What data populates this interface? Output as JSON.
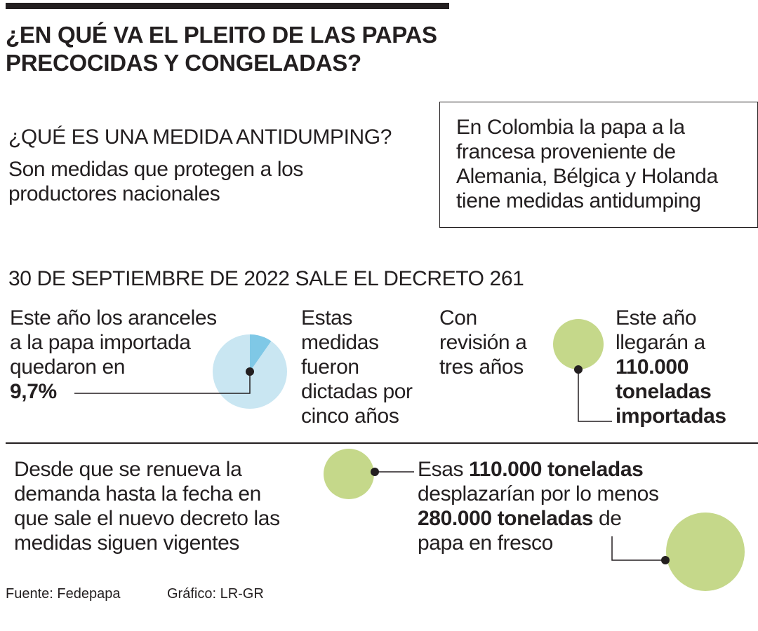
{
  "title_line1": "¿EN QUÉ VA EL PLEITO DE LAS PAPAS",
  "title_line2": "PRECOCIDAS Y CONGELADAS?",
  "antidumping": {
    "heading": "¿QUÉ ES UNA MEDIDA ANTIDUMPING?",
    "line1": "Son medidas que protegen a los",
    "line2": "productores nacionales"
  },
  "colombia_note": {
    "line1": "En Colombia la papa a la",
    "line2": "francesa proveniente de",
    "line3": "Alemania, Bélgica y Holanda",
    "line4": "tiene medidas antidumping"
  },
  "decree_heading": "30 DE SEPTIEMBRE DE 2022 SALE EL DECRETO 261",
  "tariffs": {
    "line1": "Este año los aranceles",
    "line2": "a la papa importada",
    "line3": "quedaron en",
    "value": "9,7%",
    "percent": 9.7
  },
  "duration": {
    "line1": "Estas",
    "line2": "medidas",
    "line3": "fueron",
    "line4": "dictadas por",
    "line5": "cinco años"
  },
  "review": {
    "line1": "Con",
    "line2": "revisión a",
    "line3": "tres años"
  },
  "imports": {
    "line1": "Este año",
    "line2": "llegarán a",
    "line3": "110.000",
    "line4": "toneladas",
    "line5": "importadas"
  },
  "renewal": {
    "line1": "Desde que se renueva la",
    "line2": "demanda hasta la fecha en",
    "line3": "que sale el nuevo decreto las",
    "line4": "medidas siguen vigentes"
  },
  "displacement": {
    "l1a": "Esas ",
    "l1b": "110.000 toneladas",
    "line2": "desplazarían por lo menos",
    "l3a": "280.000 toneladas",
    "l3b": " de",
    "line4": "papa en fresco"
  },
  "source": "Fuente: Fedepapa",
  "credit": "Gráfico: LR-GR",
  "colors": {
    "pie_base": "#c9e6f2",
    "pie_slice": "#7fc8e6",
    "circle_green": "#c5d88a",
    "ink": "#231f20"
  }
}
